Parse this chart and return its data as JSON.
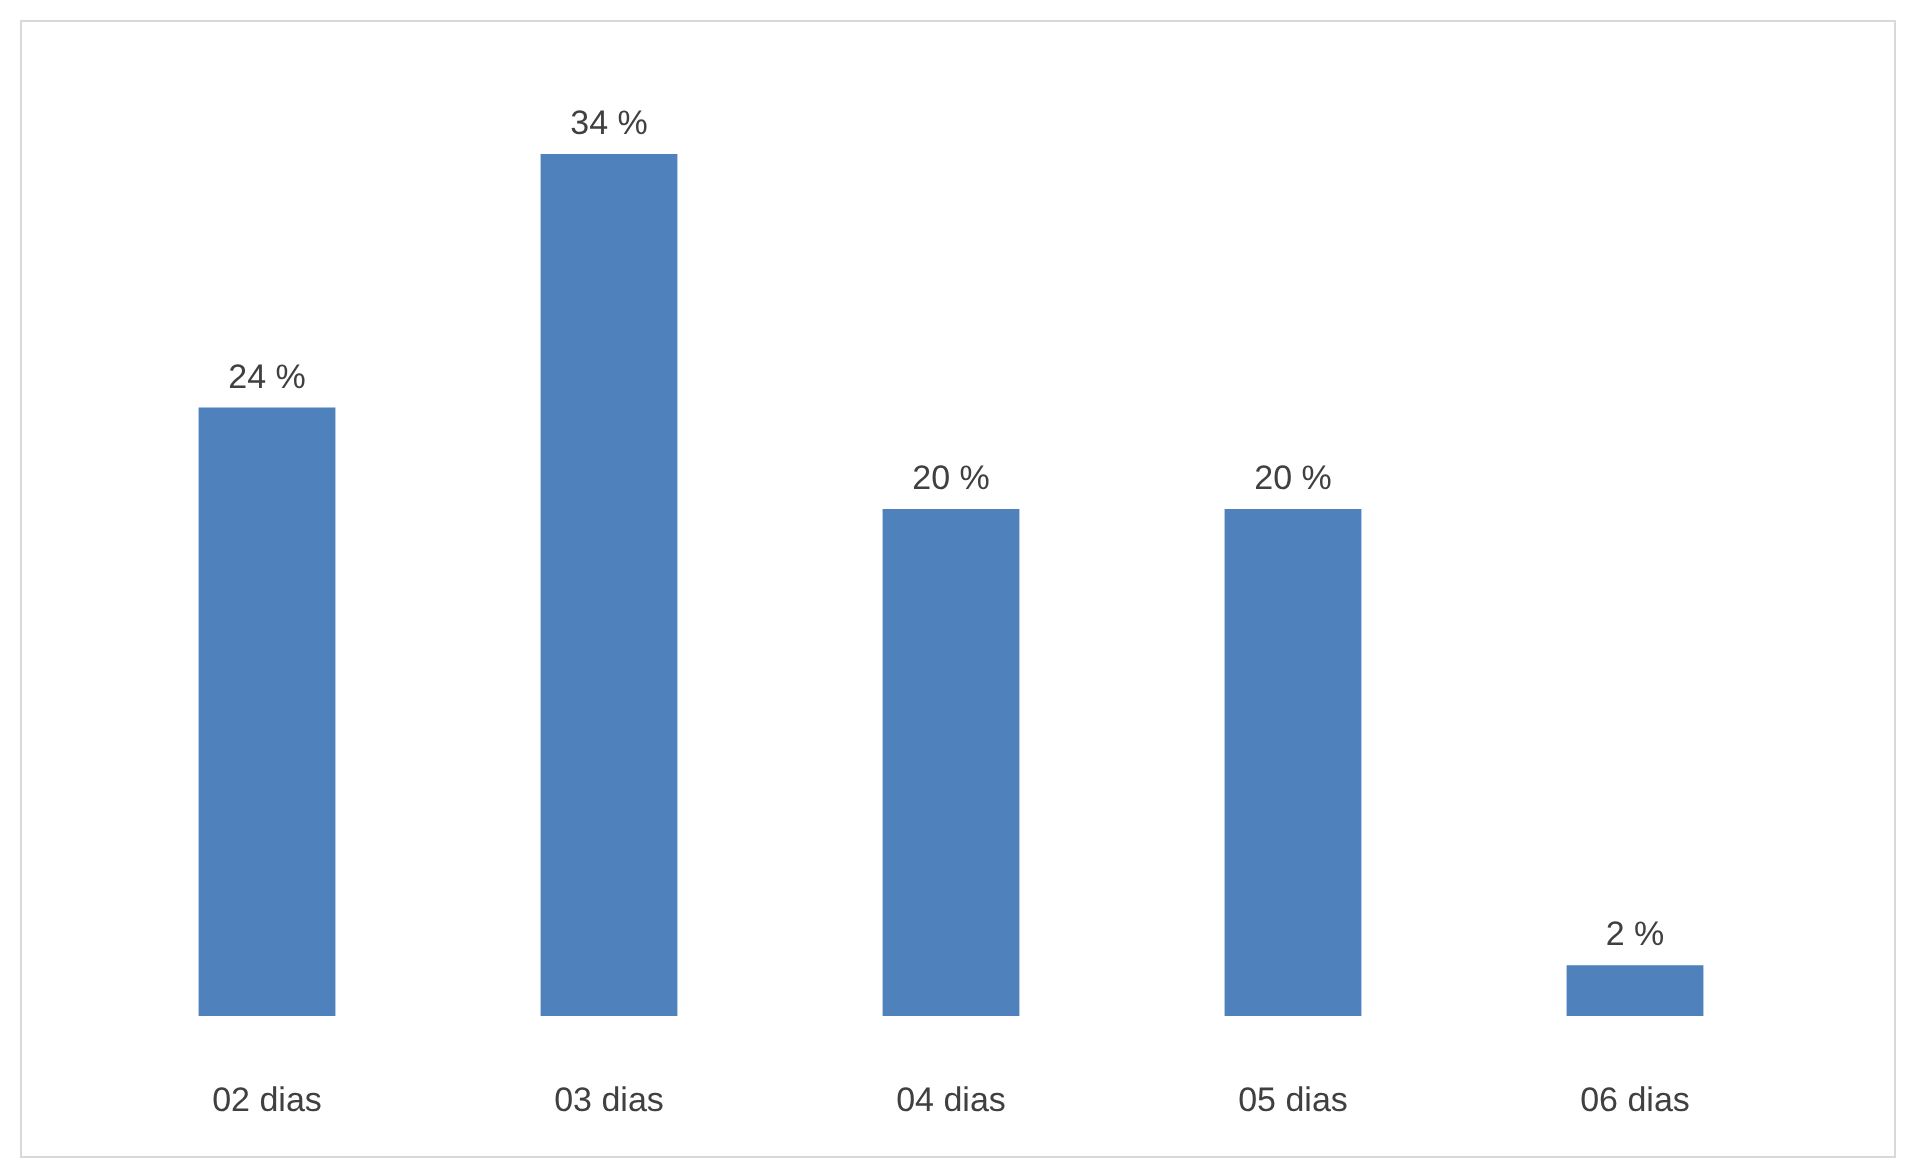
{
  "chart_data": {
    "type": "bar",
    "categories": [
      "02 dias",
      "03 dias",
      "04 dias",
      "05 dias",
      "06 dias"
    ],
    "values": [
      24,
      34,
      20,
      20,
      2
    ],
    "value_labels": [
      "24 %",
      "34 %",
      "20 %",
      "20 %",
      "2 %"
    ],
    "color": "#4f81bd",
    "tick_labels": "x"
  }
}
